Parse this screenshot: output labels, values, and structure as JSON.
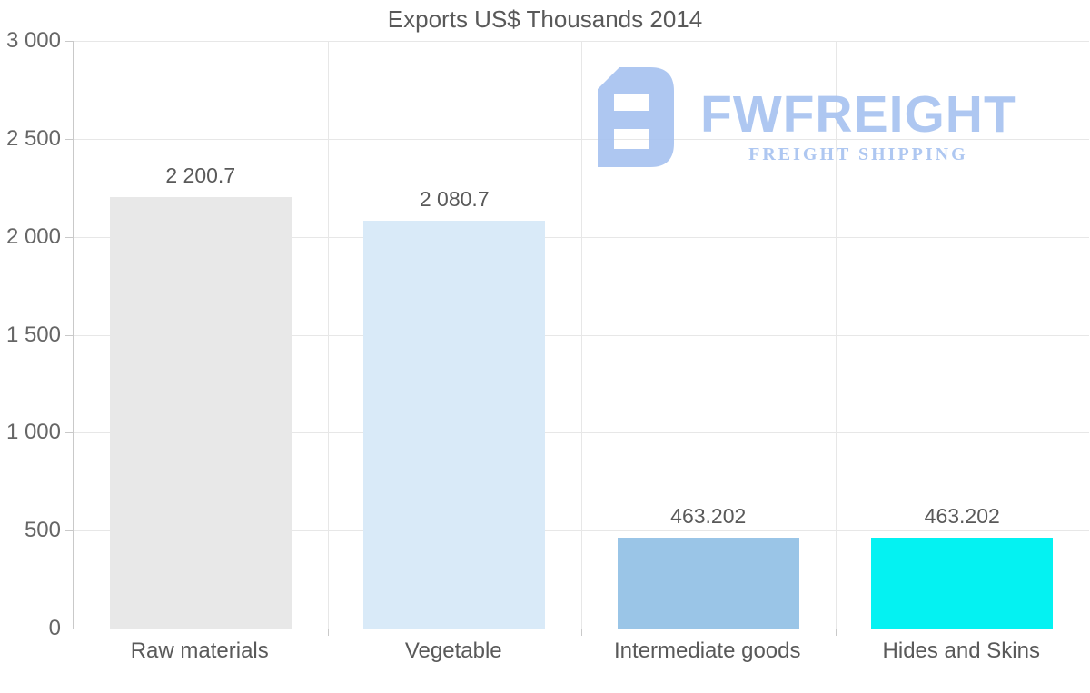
{
  "watermark": {
    "brand": "FWFREIGHT",
    "tagline": "FREIGHT SHIPPING",
    "color": "#a6c2f0"
  },
  "chart_data": {
    "type": "bar",
    "title": "Exports US$ Thousands 2014",
    "categories": [
      "Raw materials",
      "Vegetable",
      "Intermediate goods",
      "Hides and Skins"
    ],
    "values": [
      2200.7,
      2080.7,
      463.202,
      463.202
    ],
    "value_labels": [
      "2 200.7",
      "2 080.7",
      "463.202",
      "463.202"
    ],
    "bar_colors": [
      "#e8e8e8",
      "#d9eaf8",
      "#9ac5e7",
      "#04f2f2"
    ],
    "xlabel": "",
    "ylabel": "",
    "ylim": [
      0,
      3000
    ],
    "yticks": [
      {
        "value": 3000,
        "label": "3 000"
      },
      {
        "value": 2500,
        "label": "2 500"
      },
      {
        "value": 2000,
        "label": "2 000"
      },
      {
        "value": 1500,
        "label": "1 500"
      },
      {
        "value": 1000,
        "label": "1 000"
      },
      {
        "value": 500,
        "label": "500"
      },
      {
        "value": 0,
        "label": "0"
      }
    ],
    "grid": true,
    "legend": "none",
    "background": "#ffffff"
  },
  "colors": {
    "grid": "#e7e7e7",
    "axis": "#c9c9c9",
    "title_text": "#595959",
    "tick_text": "#666666",
    "value_text": "#595959"
  }
}
